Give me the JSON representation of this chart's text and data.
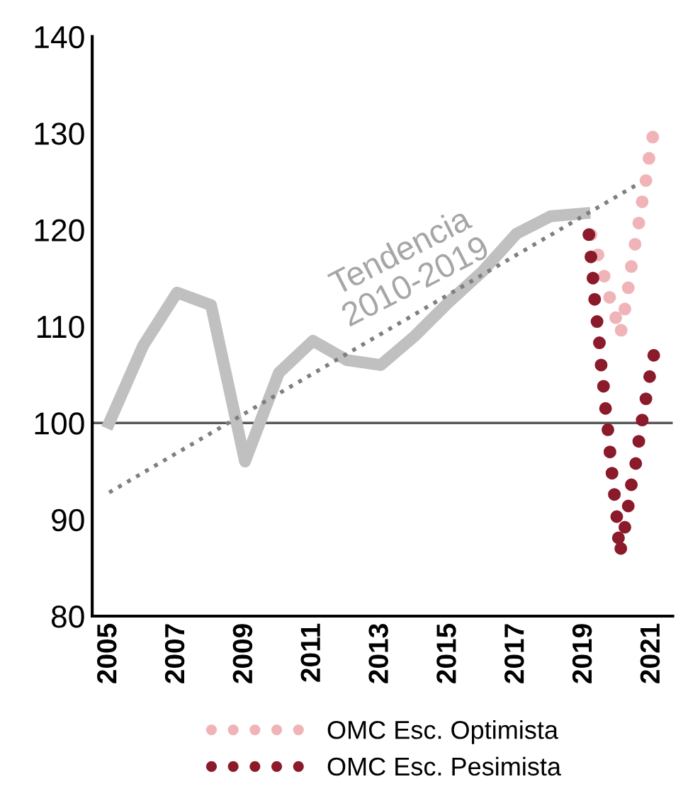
{
  "chart_data": {
    "type": "line",
    "x": [
      2005,
      2006,
      2007,
      2008,
      2009,
      2010,
      2011,
      2012,
      2013,
      2014,
      2015,
      2016,
      2017,
      2018,
      2019
    ],
    "series": [
      {
        "color": "#c0c0c0",
        "values": [
          100,
          108,
          113.5,
          112.2,
          96,
          105.2,
          108.5,
          106.5,
          106,
          109,
          112.5,
          115.7,
          119.6,
          121.4,
          121.7
        ]
      },
      {
        "color": "#7f7f7f",
        "line_style": "dotted",
        "x": [
          2005,
          2020.9
        ],
        "values": [
          92.8,
          125.4
        ]
      },
      {
        "type": "scatter",
        "name": "OMC Esc. Optimista",
        "color": "#f0b4b8",
        "marker": "circle",
        "x": [
          2019.19,
          2019.4,
          2019.58,
          2019.74,
          2019.92,
          2020.08,
          2020.19,
          2020.29,
          2020.38,
          2020.49,
          2020.6,
          2020.7,
          2020.81,
          2020.9,
          2021.01
        ],
        "values": [
          119.5,
          117.4,
          115.2,
          113.0,
          110.9,
          109.6,
          111.8,
          114.0,
          116.2,
          118.5,
          120.7,
          122.9,
          125.1,
          127.4,
          129.6
        ]
      },
      {
        "type": "scatter",
        "name": "OMC Esc. Pesimista",
        "color": "#8b1a2b",
        "marker": "circle",
        "x": [
          2019.13,
          2019.19,
          2019.25,
          2019.3,
          2019.37,
          2019.44,
          2019.49,
          2019.56,
          2019.62,
          2019.69,
          2019.75,
          2019.81,
          2019.88,
          2019.95,
          2020.0,
          2020.07,
          2020.19,
          2020.29,
          2020.38,
          2020.51,
          2020.6,
          2020.7,
          2020.81,
          2020.92,
          2021.04
        ],
        "values": [
          119.5,
          117.2,
          115.0,
          112.8,
          110.5,
          108.3,
          106.0,
          103.8,
          101.5,
          99.3,
          97.0,
          94.8,
          92.6,
          90.3,
          88.1,
          87.0,
          89.2,
          91.4,
          93.6,
          95.8,
          98.1,
          100.3,
          102.5,
          104.8,
          107.0
        ]
      }
    ],
    "xlim": [
      2004.5,
      2021.6
    ],
    "xticks": [
      2005,
      2007,
      2009,
      2011,
      2013,
      2015,
      2017,
      2019,
      2021
    ],
    "ylim": [
      80,
      140
    ],
    "yticks": [
      80,
      90,
      100,
      110,
      120,
      130,
      140
    ],
    "ref_lines": [
      {
        "axis": "y",
        "value": 100,
        "color": "#595959"
      }
    ],
    "annotations": [
      "Tendencia\n2010-2019"
    ],
    "legend": "bottom",
    "grid": false
  }
}
